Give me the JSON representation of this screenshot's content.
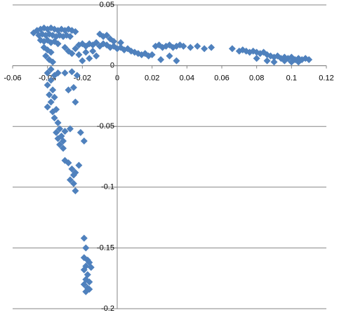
{
  "chart_data": {
    "type": "scatter",
    "color": "#4f81bd",
    "grid": true,
    "xlim": [
      -0.06,
      0.12
    ],
    "xticks": [
      -0.06,
      -0.04,
      -0.02,
      0,
      0.02,
      0.04,
      0.06,
      0.08,
      0.1,
      0.12
    ],
    "ylim": [
      -0.2,
      0.05
    ],
    "yticks": [
      0.05,
      0,
      -0.05,
      -0.1,
      -0.15,
      -0.2
    ],
    "x": [
      -0.048,
      -0.046,
      -0.044,
      -0.042,
      -0.04,
      -0.038,
      -0.036,
      -0.034,
      -0.032,
      -0.03,
      -0.028,
      -0.026,
      -0.024,
      -0.045,
      -0.043,
      -0.041,
      -0.039,
      -0.037,
      -0.035,
      -0.033,
      -0.031,
      -0.029,
      -0.027,
      -0.044,
      -0.042,
      -0.04,
      -0.038,
      -0.036,
      -0.034,
      -0.042,
      -0.04,
      -0.038,
      -0.041,
      -0.039,
      -0.037,
      -0.03,
      -0.028,
      -0.026,
      -0.024,
      -0.022,
      -0.022,
      -0.02,
      -0.018,
      -0.016,
      -0.014,
      -0.012,
      -0.01,
      -0.008,
      -0.006,
      -0.004,
      -0.002,
      0,
      0.002,
      0.004,
      0.006,
      0.008,
      0.01,
      0.012,
      0.014,
      0.016,
      0.018,
      0.02,
      -0.01,
      -0.008,
      -0.006,
      -0.004,
      -0.002,
      0.002,
      -0.018,
      -0.014,
      -0.016,
      -0.012,
      -0.02,
      0.022,
      0.024,
      0.026,
      0.028,
      0.03,
      0.032,
      0.034,
      0.036,
      0.038,
      0.042,
      0.046,
      0.05,
      0.054,
      0.025,
      0.03,
      0.034,
      0.066,
      0.07,
      0.072,
      0.074,
      0.076,
      0.078,
      0.08,
      0.082,
      0.084,
      0.086,
      0.088,
      0.09,
      0.092,
      0.094,
      0.096,
      0.098,
      0.1,
      0.102,
      0.104,
      0.106,
      0.108,
      0.11,
      0.096,
      0.1,
      0.104,
      0.086,
      0.09,
      0.08,
      -0.038,
      -0.04,
      -0.036,
      -0.034,
      -0.03,
      -0.026,
      -0.038,
      -0.04,
      -0.037,
      -0.039,
      -0.036,
      -0.038,
      -0.04,
      -0.037,
      -0.035,
      -0.036,
      -0.034,
      -0.033,
      -0.035,
      -0.032,
      -0.031,
      -0.033,
      -0.031,
      -0.034,
      -0.03,
      -0.027,
      -0.03,
      -0.028,
      -0.026,
      -0.025,
      -0.027,
      -0.025,
      -0.024,
      -0.024,
      -0.021,
      -0.019,
      -0.022,
      -0.024,
      -0.025,
      -0.028,
      -0.023,
      -0.019,
      -0.018,
      -0.019,
      -0.017,
      -0.018,
      -0.016,
      -0.019,
      -0.017,
      -0.018,
      -0.016,
      -0.019,
      -0.017,
      -0.018,
      -0.016,
      -0.015
    ],
    "y": [
      0.027,
      0.029,
      0.03,
      0.031,
      0.03,
      0.031,
      0.03,
      0.029,
      0.03,
      0.029,
      0.03,
      0.029,
      0.028,
      0.025,
      0.026,
      0.025,
      0.026,
      0.025,
      0.024,
      0.025,
      0.024,
      0.025,
      0.024,
      0.021,
      0.02,
      0.021,
      0.019,
      0.02,
      0.018,
      0.015,
      0.013,
      0.011,
      0.008,
      0.005,
      0.003,
      0.015,
      0.012,
      0.01,
      0.014,
      0.009,
      0.017,
      0.018,
      0.016,
      0.018,
      0.017,
      0.019,
      0.016,
      0.018,
      0.017,
      0.015,
      0.016,
      0.014,
      0.015,
      0.013,
      0.014,
      0.012,
      0.011,
      0.01,
      0.009,
      0.01,
      0.008,
      0.009,
      0.026,
      0.024,
      0.025,
      0.022,
      0.02,
      0.019,
      0.011,
      0.012,
      0.006,
      0.008,
      0.004,
      0.016,
      0.017,
      0.015,
      0.016,
      0.017,
      0.015,
      0.016,
      0.017,
      0.016,
      0.015,
      0.016,
      0.014,
      0.015,
      0.005,
      0.008,
      0.004,
      0.014,
      0.012,
      0.013,
      0.012,
      0.011,
      0.012,
      0.011,
      0.01,
      0.011,
      0.009,
      0.008,
      0.007,
      0.008,
      0.006,
      0.007,
      0.006,
      0.007,
      0.005,
      0.006,
      0.005,
      0.006,
      0.005,
      0.004,
      0.003,
      0.003,
      0.004,
      0.003,
      0.006,
      -0.003,
      -0.006,
      -0.008,
      -0.006,
      -0.006,
      -0.005,
      -0.012,
      -0.016,
      -0.02,
      -0.024,
      -0.026,
      -0.03,
      -0.034,
      -0.038,
      -0.036,
      -0.043,
      -0.047,
      -0.052,
      -0.055,
      -0.058,
      -0.062,
      -0.065,
      -0.068,
      -0.06,
      -0.054,
      -0.052,
      -0.078,
      -0.08,
      -0.085,
      -0.09,
      -0.094,
      -0.097,
      -0.103,
      -0.088,
      -0.055,
      -0.062,
      -0.082,
      -0.03,
      -0.018,
      -0.02,
      -0.008,
      -0.142,
      -0.15,
      -0.158,
      -0.16,
      -0.165,
      -0.162,
      -0.168,
      -0.172,
      -0.176,
      -0.178,
      -0.18,
      -0.183,
      -0.186,
      -0.184,
      -0.166
    ]
  }
}
